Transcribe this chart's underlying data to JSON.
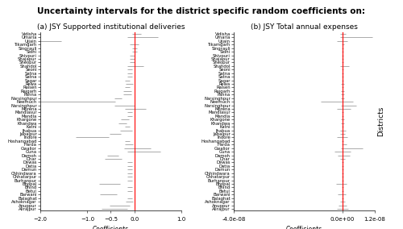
{
  "title": "Uncertainty intervals for the district specific random coefficients on:",
  "subtitle_a": "(a) JSY Supported institutional deliveries",
  "subtitle_b": "(b) JSY Total annual expenses",
  "xlabel": "Coefficients",
  "ylabel": "Districts",
  "districts": [
    "Vidisha",
    "Umaria",
    "Ujjain",
    "Tikamgarh",
    "Singrauli",
    "Sidhi",
    "Shivpuri",
    "Shajapur",
    "Sheopur",
    "Shahdol",
    "Seoni",
    "Satna",
    "Satna",
    "Sagar",
    "Rewa",
    "Raisen",
    "Rajgarh",
    "Panna",
    "Narsinghpur",
    "Neemuch",
    "Narsinghpur",
    "Morena",
    "Mandlasur",
    "Mandla",
    "Khargone",
    "Khandwa",
    "Katni",
    "Jhabua",
    "Jabalpur",
    "Indore",
    "Hoshangabad",
    "Harda",
    "Gwalior",
    "Guna",
    "Damoh",
    "Dhar",
    "Dewas",
    "Datia",
    "Damun",
    "Chhindwara",
    "Chhatarpur",
    "Burhanpur",
    "Bhopal",
    "Bhind",
    "Betul",
    "Barwani",
    "Balaghat",
    "Ashoknagar",
    "Anuppur",
    "Alirajpur"
  ],
  "coef_a": [
    0.05,
    0.05,
    -2.0,
    0.0,
    0.0,
    0.0,
    -0.05,
    -0.05,
    -0.05,
    -0.05,
    -0.1,
    -0.1,
    -0.1,
    -0.15,
    -0.1,
    -0.15,
    -0.15,
    -0.15,
    -0.35,
    -1.85,
    -0.35,
    -0.1,
    -0.1,
    -0.1,
    -0.2,
    -0.25,
    -0.15,
    -0.2,
    -0.4,
    -1.0,
    -0.15,
    -0.15,
    -0.1,
    0.3,
    -0.45,
    -0.45,
    -0.1,
    -0.1,
    -0.1,
    -0.1,
    -0.1,
    -0.1,
    -0.55,
    -0.1,
    -0.1,
    -0.55,
    -0.1,
    -0.1,
    -0.35,
    -0.45
  ],
  "lo_a": [
    0.1,
    0.2,
    0.25,
    0.1,
    0.05,
    0.05,
    0.05,
    0.05,
    0.05,
    0.1,
    0.05,
    0.05,
    0.05,
    0.05,
    0.08,
    0.05,
    0.08,
    0.08,
    0.08,
    0.45,
    0.08,
    0.1,
    0.05,
    0.05,
    0.08,
    0.08,
    0.05,
    0.1,
    0.12,
    0.25,
    0.05,
    0.05,
    0.12,
    0.45,
    0.12,
    0.18,
    0.05,
    0.05,
    0.05,
    0.05,
    0.05,
    0.05,
    0.2,
    0.05,
    0.05,
    0.18,
    0.05,
    0.08,
    0.18,
    0.25
  ],
  "hi_a": [
    0.1,
    0.45,
    0.45,
    0.1,
    0.05,
    0.05,
    0.05,
    0.05,
    0.05,
    0.25,
    0.05,
    0.05,
    0.05,
    0.05,
    0.08,
    0.05,
    0.08,
    0.08,
    0.08,
    1.45,
    0.35,
    0.35,
    0.05,
    0.05,
    0.08,
    0.08,
    0.05,
    0.15,
    0.12,
    0.45,
    0.05,
    0.12,
    0.45,
    0.25,
    0.12,
    0.18,
    0.05,
    0.05,
    0.05,
    0.05,
    0.05,
    0.05,
    0.25,
    0.05,
    0.05,
    0.18,
    0.05,
    0.08,
    0.25,
    0.3
  ],
  "coef_b": [
    2e-10,
    2e-10,
    0.0,
    2e-10,
    1e-10,
    1e-10,
    1e-10,
    1e-10,
    1e-10,
    1e-10,
    1e-10,
    1e-10,
    1e-10,
    1e-10,
    1e-10,
    1e-10,
    1e-10,
    1e-10,
    1e-10,
    0.0,
    1e-10,
    1e-10,
    1e-10,
    1e-10,
    1e-10,
    1e-10,
    1e-10,
    1e-10,
    1e-10,
    0.0,
    1e-10,
    1e-10,
    5e-10,
    0.0,
    3e-10,
    1e-10,
    1e-10,
    1e-10,
    1e-10,
    1e-10,
    1e-10,
    1e-10,
    -3e-10,
    1e-10,
    1e-10,
    -2e-10,
    1e-10,
    1e-10,
    1e-10,
    1e-10
  ],
  "lo_b": [
    1e-09,
    1e-09,
    2e-09,
    5e-10,
    3e-10,
    3e-10,
    3e-10,
    3e-10,
    3e-10,
    8e-10,
    3e-10,
    3e-10,
    3e-10,
    3e-10,
    6e-10,
    3e-10,
    6e-10,
    6e-10,
    6e-10,
    8e-09,
    6e-10,
    2e-09,
    3e-10,
    3e-10,
    6e-10,
    6e-10,
    3e-10,
    8e-10,
    1e-09,
    2e-09,
    3e-10,
    3e-10,
    1e-09,
    3e-09,
    2e-09,
    8e-10,
    3e-10,
    3e-10,
    3e-10,
    3e-10,
    3e-10,
    3e-10,
    2e-09,
    3e-10,
    3e-10,
    1.5e-09,
    3e-10,
    8e-10,
    1.5e-09,
    2e-09
  ],
  "hi_b": [
    1e-09,
    1.1e-08,
    2e-09,
    5e-10,
    3e-10,
    3e-10,
    3e-10,
    3e-10,
    3e-10,
    2.5e-09,
    3e-10,
    3e-10,
    3e-10,
    3e-10,
    6e-10,
    3e-10,
    6e-10,
    6e-10,
    6e-10,
    4e-09,
    5e-09,
    3e-09,
    3e-10,
    3e-10,
    6e-10,
    6e-10,
    3e-10,
    1.2e-09,
    1e-09,
    2e-09,
    3e-10,
    1.5e-09,
    7e-09,
    3e-09,
    2.5e-09,
    8e-10,
    3e-10,
    3e-10,
    3e-10,
    3e-10,
    3e-10,
    3e-10,
    2e-09,
    3e-10,
    3e-10,
    1.5e-09,
    3e-10,
    8e-10,
    1.5e-09,
    2e-09
  ],
  "xlim_a": [
    -2.0,
    1.0
  ],
  "xlim_b": [
    -4e-08,
    1.2e-08
  ],
  "xticks_a": [
    -2.0,
    -1.0,
    -0.5,
    0.0,
    1.0
  ],
  "xticks_b": [
    -4e-08,
    0.0,
    1.2e-08
  ],
  "xticklabels_b": [
    "-4.0e-08",
    "0.0e+00",
    "1.2e-08"
  ],
  "vline_color": "red",
  "line_color": "#888888",
  "bg_color": "#ffffff",
  "title_fontsize": 7.5,
  "subtitle_fontsize": 6.5,
  "label_fontsize": 5.5,
  "tick_fontsize": 5.0,
  "district_fontsize": 3.8
}
